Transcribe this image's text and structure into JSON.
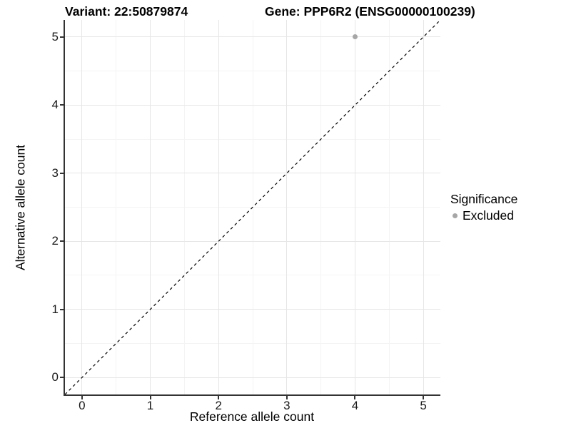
{
  "header": {
    "variant_title": "Variant: 22:50879874",
    "gene_title": "Gene: PPP6R2 (ENSG00000100239)"
  },
  "chart_data": {
    "type": "scatter",
    "title_left": "Variant: 22:50879874",
    "title_right": "Gene: PPP6R2 (ENSG00000100239)",
    "xlabel": "Reference allele count",
    "ylabel": "Alternative allele count",
    "xlim": [
      -0.25,
      5.25
    ],
    "ylim": [
      -0.25,
      5.25
    ],
    "xticks": [
      0,
      1,
      2,
      3,
      4,
      5
    ],
    "yticks": [
      0,
      1,
      2,
      3,
      4,
      5
    ],
    "minor_ticks_x": [
      0.5,
      1.5,
      2.5,
      3.5,
      4.5
    ],
    "minor_ticks_y": [
      0.5,
      1.5,
      2.5,
      3.5,
      4.5
    ],
    "grid": "major+minor",
    "legend_position": "right",
    "identity_line": {
      "equation": "y = x",
      "style": "dashed",
      "color": "#000000"
    },
    "points": [
      {
        "x": 4,
        "y": 5,
        "series": "Excluded",
        "color": "#a6a6a6"
      }
    ],
    "legend": {
      "title": "Significance",
      "items": [
        {
          "label": "Excluded",
          "color": "#a6a6a6",
          "marker": "circle"
        }
      ]
    }
  },
  "colors": {
    "background": "#ffffff",
    "axis_line": "#333333",
    "grid_major": "#e6e6e6",
    "grid_minor": "#f4f4f4",
    "point": "#a6a6a6",
    "text": "#000000"
  }
}
